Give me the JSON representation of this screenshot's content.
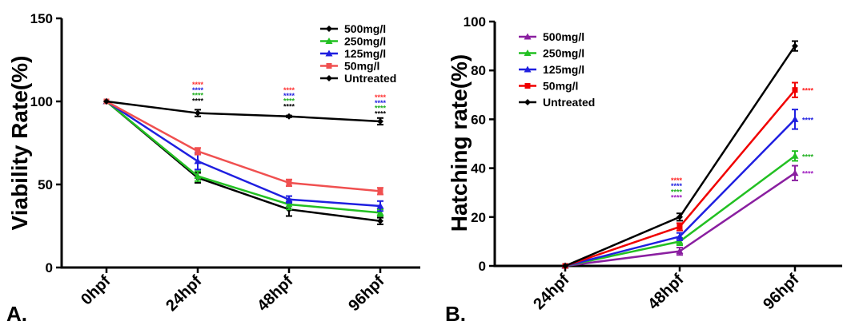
{
  "chart_data": [
    {
      "panel": "A.",
      "type": "line",
      "ylabel": "Viability Rate(%)",
      "xlabel": "",
      "categories": [
        "0hpf",
        "24hpf",
        "48hpf",
        "96hpf"
      ],
      "ylim": [
        0,
        150
      ],
      "yticks": [
        0,
        50,
        100,
        150
      ],
      "legend_position": "top-right",
      "series": [
        {
          "name": "500mg/l",
          "color": "#000000",
          "values": [
            100,
            54,
            35,
            28
          ],
          "errors": [
            0,
            3,
            4,
            2
          ]
        },
        {
          "name": "250mg/l",
          "color": "#22c022",
          "values": [
            100,
            55,
            38,
            33
          ],
          "errors": [
            0,
            3,
            3,
            2
          ]
        },
        {
          "name": "125mg/l",
          "color": "#1f1fe0",
          "values": [
            100,
            64,
            41,
            37
          ],
          "errors": [
            0,
            5,
            2,
            3
          ]
        },
        {
          "name": "50mg/l",
          "color": "#f05050",
          "values": [
            100,
            70,
            51,
            46
          ],
          "errors": [
            0,
            2,
            2,
            2
          ]
        },
        {
          "name": "Untreated",
          "color": "#000000",
          "values": [
            100,
            93,
            91,
            88
          ],
          "errors": [
            0,
            2,
            0.5,
            2
          ]
        }
      ],
      "significance": [
        {
          "category": "24hpf",
          "stars": [
            "****",
            "****",
            "****",
            "****"
          ],
          "colors": [
            "#ff3030",
            "#2020e0",
            "#20b020",
            "#000000"
          ]
        },
        {
          "category": "48hpf",
          "stars": [
            "****",
            "****",
            "****",
            "****"
          ],
          "colors": [
            "#ff3030",
            "#2020e0",
            "#20b020",
            "#000000"
          ]
        },
        {
          "category": "96hpf",
          "stars": [
            "****",
            "****",
            "****",
            "****"
          ],
          "colors": [
            "#ff3030",
            "#2020e0",
            "#20b020",
            "#000000"
          ]
        }
      ]
    },
    {
      "panel": "B.",
      "type": "line",
      "ylabel": "Hatching rate(%)",
      "xlabel": "",
      "categories": [
        "24hpf",
        "48hpf",
        "96hpf"
      ],
      "ylim": [
        0,
        100
      ],
      "yticks": [
        0,
        20,
        40,
        60,
        80,
        100
      ],
      "legend_position": "top-left",
      "series": [
        {
          "name": "500mg/l",
          "color": "#8a1fa0",
          "values": [
            0,
            6,
            38
          ],
          "errors": [
            0,
            1.5,
            3
          ]
        },
        {
          "name": "250mg/l",
          "color": "#22c022",
          "values": [
            0,
            10,
            45
          ],
          "errors": [
            0,
            1.5,
            2
          ]
        },
        {
          "name": "125mg/l",
          "color": "#1f1fe0",
          "values": [
            0,
            12,
            60
          ],
          "errors": [
            0,
            1.5,
            4
          ]
        },
        {
          "name": "50mg/l",
          "color": "#f00000",
          "values": [
            0,
            16,
            72
          ],
          "errors": [
            0,
            1.5,
            3
          ]
        },
        {
          "name": "Untreated",
          "color": "#000000",
          "values": [
            0,
            20,
            90
          ],
          "errors": [
            0,
            1.5,
            2
          ]
        }
      ],
      "significance_stacked": [
        {
          "category": "48hpf",
          "stars": [
            "****",
            "****",
            "****",
            "****"
          ],
          "colors": [
            "#ff2020",
            "#2020e0",
            "#20b020",
            "#a020c0"
          ]
        }
      ],
      "significance_end": [
        {
          "series": "50mg/l",
          "text": "****",
          "color": "#ff2020"
        },
        {
          "series": "125mg/l",
          "text": "****",
          "color": "#2020e0"
        },
        {
          "series": "250mg/l",
          "text": "****",
          "color": "#20b020"
        },
        {
          "series": "500mg/l",
          "text": "****",
          "color": "#a020c0"
        }
      ]
    }
  ]
}
